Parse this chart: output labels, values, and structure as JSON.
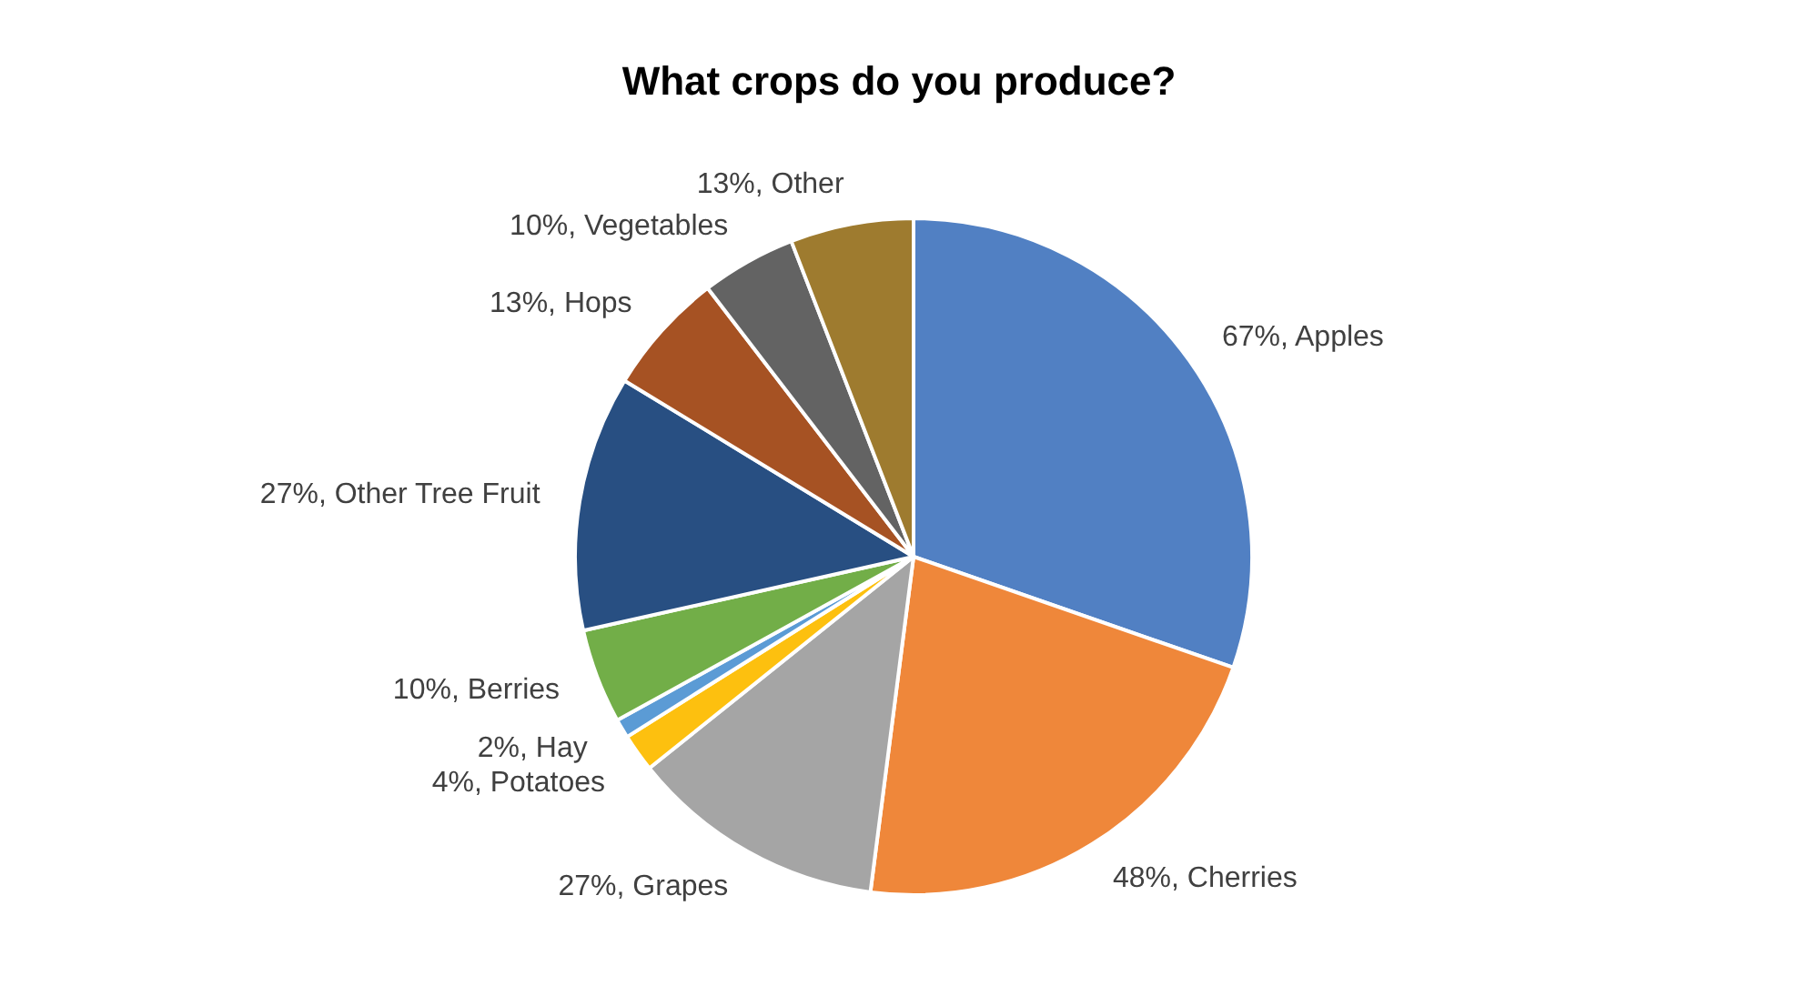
{
  "chart_data": {
    "type": "pie",
    "title": "What crops do you produce?",
    "categories": [
      "Apples",
      "Cherries",
      "Grapes",
      "Potatoes",
      "Hay",
      "Berries",
      "Other Tree Fruit",
      "Hops",
      "Vegetables",
      "Other"
    ],
    "values": [
      67,
      48,
      27,
      4,
      2,
      10,
      27,
      13,
      10,
      13
    ],
    "value_labels": [
      "67%",
      "48%",
      "27%",
      "4%",
      "2%",
      "10%",
      "27%",
      "13%",
      "10%",
      "13%"
    ],
    "colors": [
      "#5180c3",
      "#ef873a",
      "#a5a5a5",
      "#fdc00f",
      "#5b9bd5",
      "#72ae48",
      "#284f82",
      "#a65223",
      "#636363",
      "#9e7b2f"
    ],
    "legend": false
  }
}
